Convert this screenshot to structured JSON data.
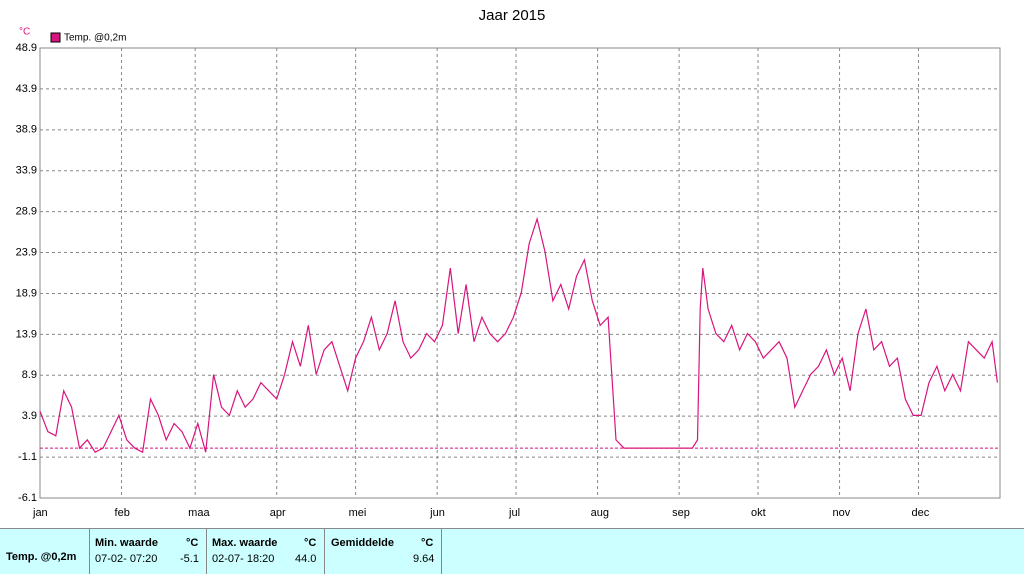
{
  "chart_data": {
    "type": "line",
    "title": "Jaar 2015",
    "y_unit": "°C",
    "x": [
      0,
      3,
      6,
      9,
      12,
      15,
      18,
      21,
      24,
      27,
      30,
      33,
      36,
      39,
      42,
      45,
      48,
      51,
      54,
      57,
      60,
      63,
      66,
      69,
      72,
      75,
      78,
      81,
      84,
      87,
      90,
      93,
      96,
      99,
      102,
      105,
      108,
      111,
      114,
      117,
      120,
      123,
      126,
      129,
      132,
      135,
      138,
      141,
      144,
      147,
      150,
      153,
      156,
      159,
      162,
      165,
      168,
      171,
      174,
      177,
      180,
      183,
      186,
      189,
      192,
      195,
      198,
      201,
      204,
      207,
      210,
      213,
      216,
      219,
      222,
      230,
      240,
      248,
      250,
      251,
      252,
      254,
      257,
      260,
      263,
      266,
      269,
      272,
      275,
      278,
      281,
      284,
      287,
      290,
      293,
      296,
      299,
      302,
      305,
      308,
      311,
      314,
      317,
      320,
      323,
      326,
      329,
      332,
      335,
      338,
      341,
      344,
      347,
      350,
      353,
      356,
      359,
      362,
      364
    ],
    "series": [
      {
        "name": "Temp. @0,2m",
        "color": "#d8157e",
        "values": [
          4.5,
          2,
          1.5,
          7,
          5,
          0,
          1,
          -0.5,
          0,
          2,
          4,
          1,
          0,
          -0.5,
          6,
          4,
          1,
          3,
          2,
          0,
          3,
          -0.5,
          9,
          5,
          4,
          7,
          5,
          6,
          8,
          7,
          6,
          9,
          13,
          10,
          15,
          9,
          12,
          13,
          10,
          7,
          11,
          13,
          16,
          12,
          14,
          18,
          13,
          11,
          12,
          14,
          13,
          15,
          22,
          14,
          20,
          13,
          16,
          14,
          13,
          14,
          16,
          19,
          25,
          28,
          24,
          18,
          20,
          17,
          21,
          23,
          18,
          15,
          16,
          1,
          0,
          0,
          0,
          0,
          1,
          17,
          22,
          17,
          14,
          13,
          15,
          12,
          14,
          13,
          11,
          12,
          13,
          11,
          5,
          7,
          9,
          10,
          12,
          9,
          11,
          7,
          14,
          17,
          12,
          13,
          10,
          11,
          6,
          4,
          4,
          8,
          10,
          7,
          9,
          7,
          13,
          12,
          11,
          13,
          8
        ]
      }
    ],
    "threshold": 0,
    "xlim": [
      0,
      365
    ],
    "xticks": [
      {
        "value": 0,
        "label": "jan"
      },
      {
        "value": 31,
        "label": "feb"
      },
      {
        "value": 59,
        "label": "maa"
      },
      {
        "value": 90,
        "label": "apr"
      },
      {
        "value": 120,
        "label": "mei"
      },
      {
        "value": 151,
        "label": "jun"
      },
      {
        "value": 181,
        "label": "jul"
      },
      {
        "value": 212,
        "label": "aug"
      },
      {
        "value": 243,
        "label": "sep"
      },
      {
        "value": 273,
        "label": "okt"
      },
      {
        "value": 304,
        "label": "nov"
      },
      {
        "value": 334,
        "label": "dec"
      }
    ],
    "ylim": [
      -6.1,
      48.9
    ],
    "yticks": [
      -6.1,
      -1.1,
      3.9,
      8.9,
      13.9,
      18.9,
      23.9,
      28.9,
      33.9,
      38.9,
      43.9,
      48.9
    ],
    "grid": true
  },
  "stats": {
    "row_label": "Temp. @0,2m",
    "min_header": "Min. waarde",
    "min_unit": "°C",
    "min_time": "07-02- 07:20",
    "min_value": "-5.1",
    "max_header": "Max. waarde",
    "max_unit": "°C",
    "max_time": "02-07- 18:20",
    "max_value": "44.0",
    "avg_header": "Gemiddelde",
    "avg_unit": "°C",
    "avg_value": "9.64"
  }
}
